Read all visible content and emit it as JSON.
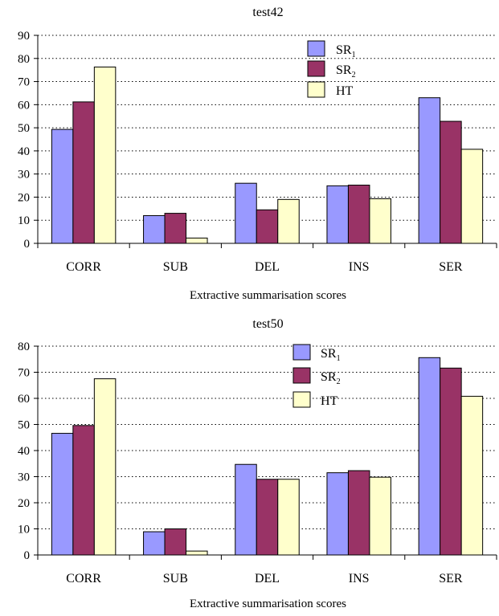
{
  "chart_data": [
    {
      "type": "bar",
      "title": "test42",
      "xlabel": "Extractive summarisation scores",
      "ylabel": "",
      "ylim": [
        0,
        90
      ],
      "yticks": [
        0,
        10,
        20,
        30,
        40,
        50,
        60,
        70,
        80,
        90
      ],
      "categories": [
        "CORR",
        "SUB",
        "DEL",
        "INS",
        "SER"
      ],
      "grid": "horizontal-dotted",
      "legend_position": "top-center",
      "series": [
        {
          "name": "SR",
          "sub": "1",
          "color": "#9999ff",
          "values": [
            49.3,
            12.0,
            26.0,
            24.9,
            63.0
          ]
        },
        {
          "name": "SR",
          "sub": "2",
          "color": "#993366",
          "values": [
            61.2,
            13.0,
            14.5,
            25.2,
            52.8
          ]
        },
        {
          "name": "HT",
          "sub": "",
          "color": "#ffffcc",
          "values": [
            76.3,
            2.3,
            19.0,
            19.3,
            40.7
          ]
        }
      ]
    },
    {
      "type": "bar",
      "title": "test50",
      "xlabel": "Extractive summarisation scores",
      "ylabel": "",
      "ylim": [
        0,
        80
      ],
      "yticks": [
        0,
        10,
        20,
        30,
        40,
        50,
        60,
        70,
        80
      ],
      "categories": [
        "CORR",
        "SUB",
        "DEL",
        "INS",
        "SER"
      ],
      "grid": "horizontal-dotted",
      "legend_position": "top-center",
      "series": [
        {
          "name": "SR",
          "sub": "1",
          "color": "#9999ff",
          "values": [
            46.6,
            8.9,
            34.7,
            31.5,
            75.6
          ]
        },
        {
          "name": "SR",
          "sub": "2",
          "color": "#993366",
          "values": [
            49.6,
            10.0,
            29.0,
            32.3,
            71.6
          ]
        },
        {
          "name": "HT",
          "sub": "",
          "color": "#ffffcc",
          "values": [
            67.5,
            1.5,
            29.0,
            29.8,
            60.8
          ]
        }
      ]
    }
  ]
}
